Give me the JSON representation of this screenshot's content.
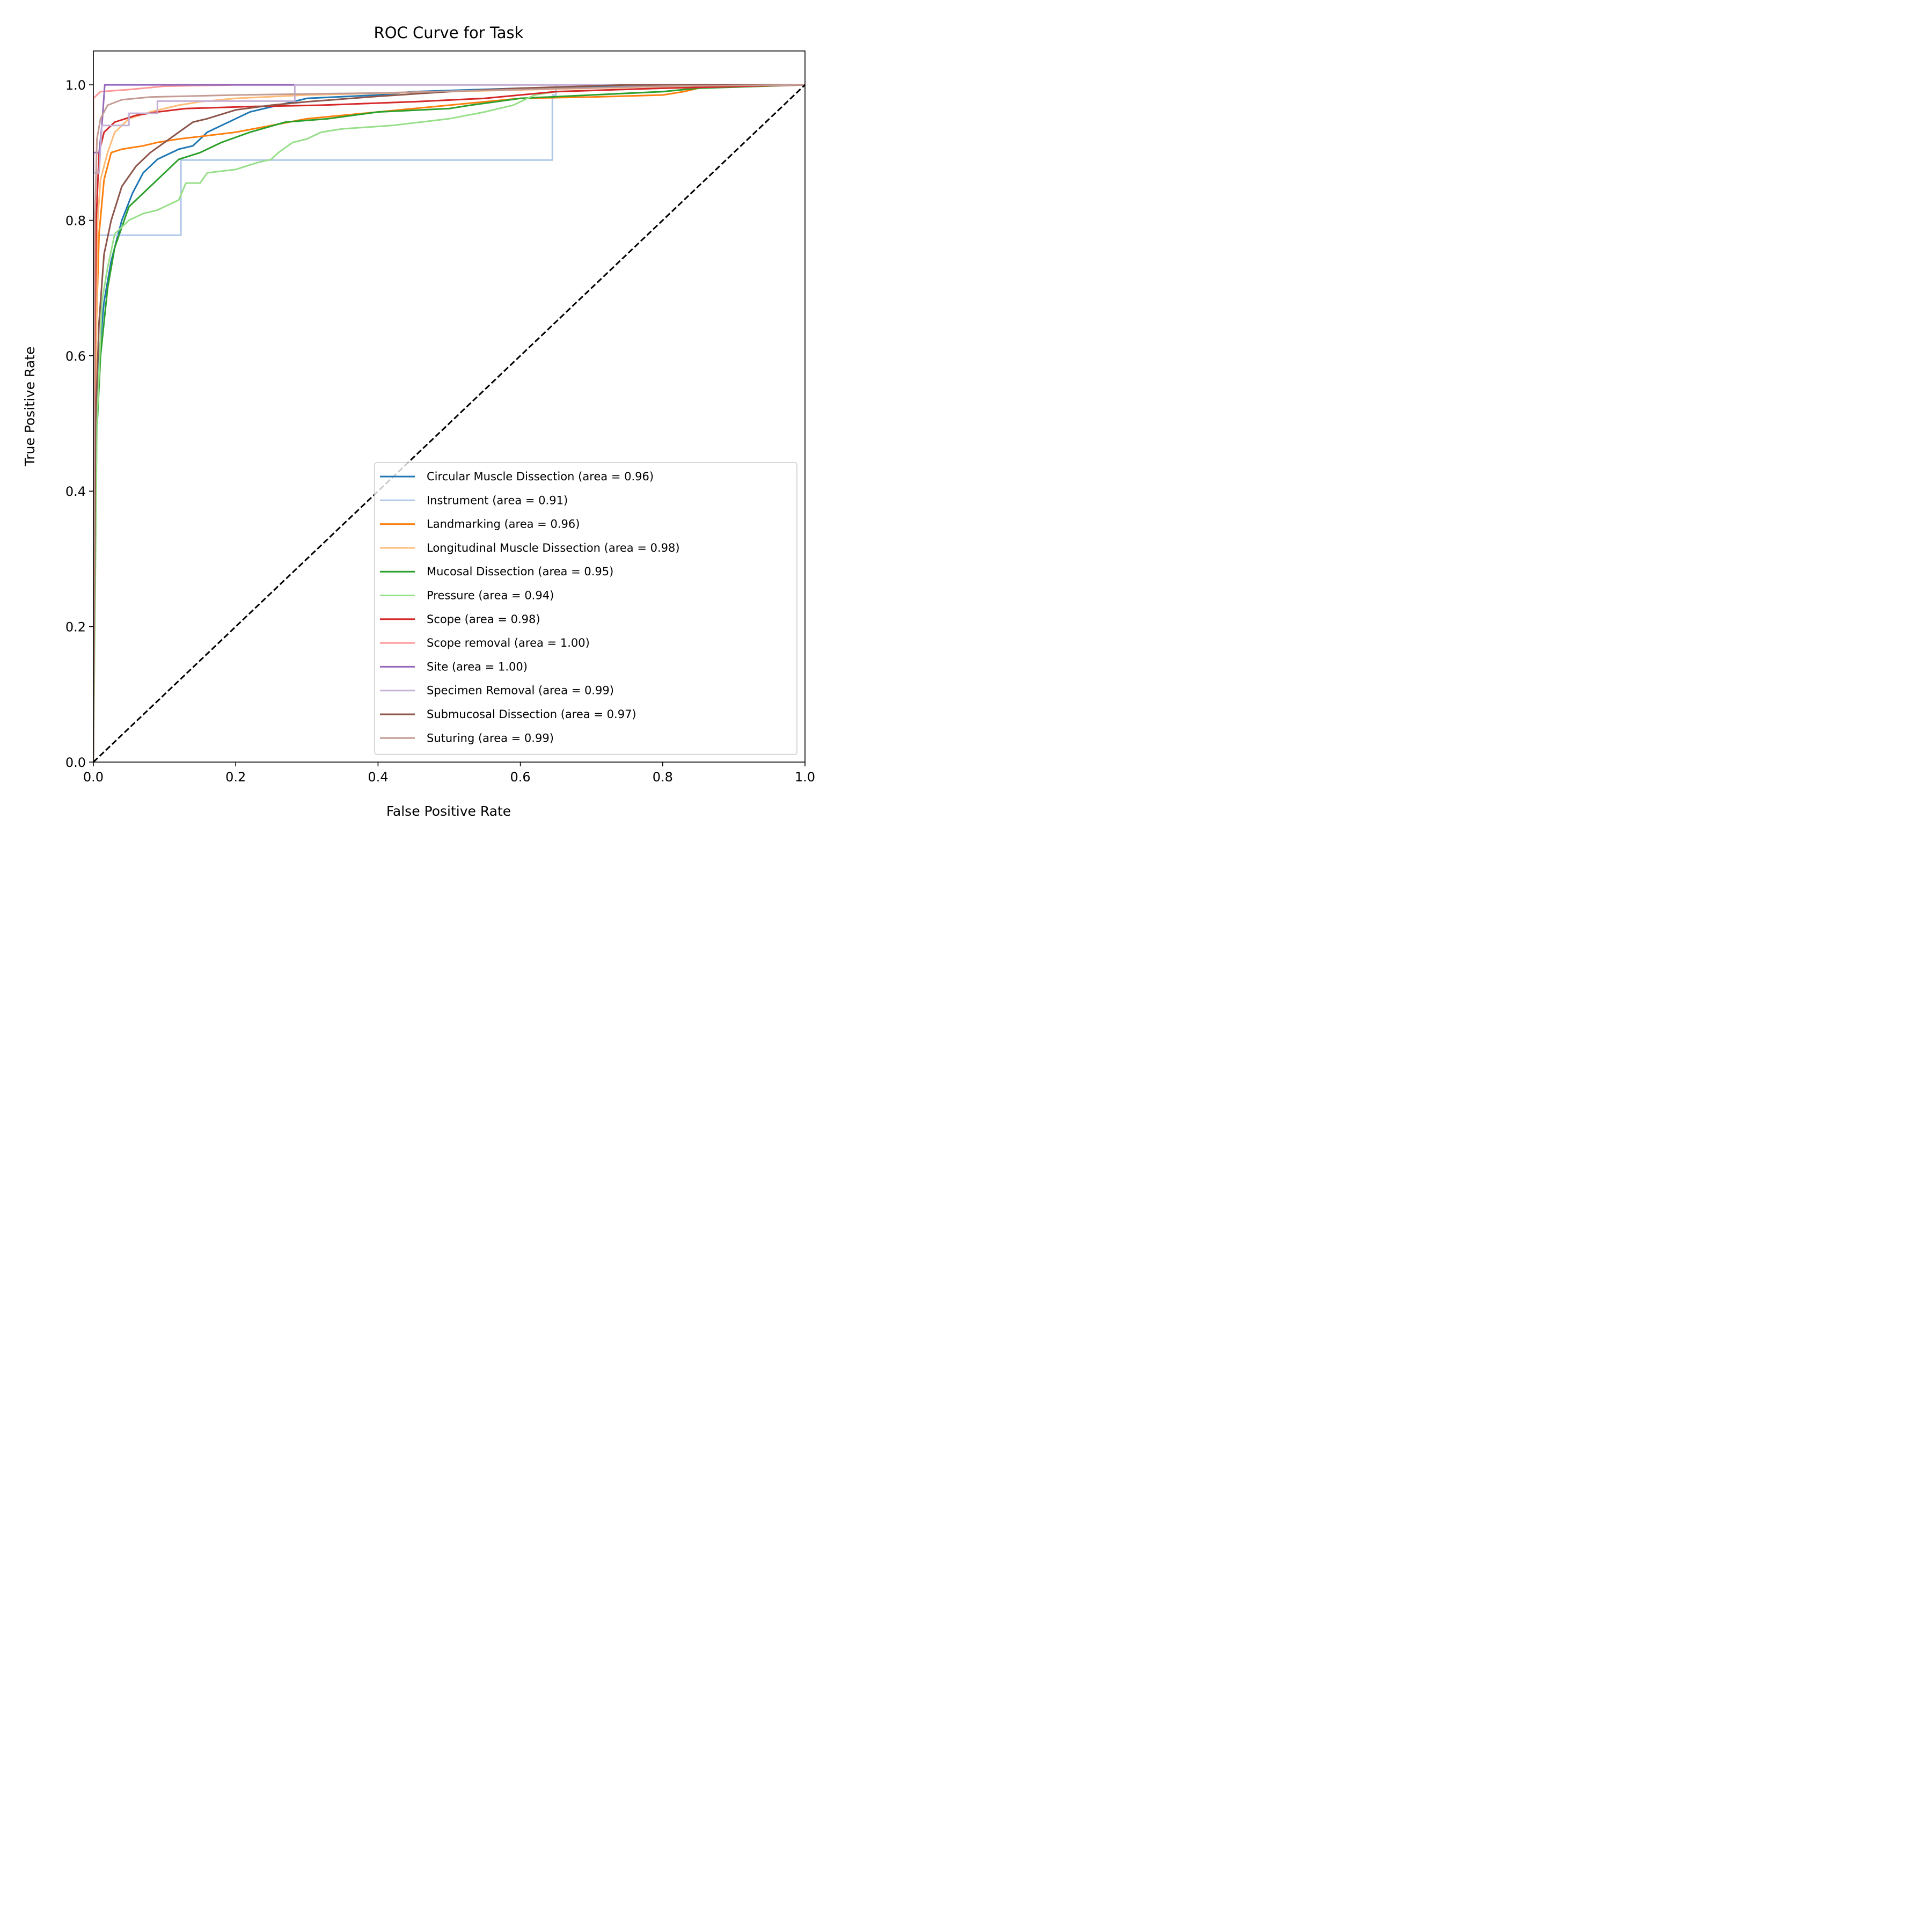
{
  "chart_data": {
    "type": "line",
    "title": "ROC Curve for Task",
    "xlabel": "False Positive Rate",
    "ylabel": "True Positive Rate",
    "xlim": [
      0.0,
      1.0
    ],
    "ylim": [
      0.0,
      1.05
    ],
    "xticks": [
      "0.0",
      "0.2",
      "0.4",
      "0.6",
      "0.8",
      "1.0"
    ],
    "yticks": [
      "0.0",
      "0.2",
      "0.4",
      "0.6",
      "0.8",
      "1.0"
    ],
    "legend_position": "lower-right",
    "diagonal": {
      "name": "chance",
      "color": "#000000",
      "style": "dashed",
      "points": [
        [
          0,
          0
        ],
        [
          1,
          1
        ]
      ]
    },
    "series": [
      {
        "name": "Circular Muscle Dissection (area = 0.96)",
        "color": "#1f77b4",
        "points": [
          [
            0,
            0
          ],
          [
            0.003,
            0.45
          ],
          [
            0.008,
            0.6
          ],
          [
            0.015,
            0.68
          ],
          [
            0.025,
            0.74
          ],
          [
            0.04,
            0.8
          ],
          [
            0.055,
            0.84
          ],
          [
            0.07,
            0.87
          ],
          [
            0.09,
            0.89
          ],
          [
            0.12,
            0.905
          ],
          [
            0.14,
            0.91
          ],
          [
            0.16,
            0.93
          ],
          [
            0.18,
            0.94
          ],
          [
            0.2,
            0.95
          ],
          [
            0.22,
            0.96
          ],
          [
            0.26,
            0.97
          ],
          [
            0.3,
            0.98
          ],
          [
            0.4,
            0.985
          ],
          [
            0.45,
            0.99
          ],
          [
            0.6,
            0.995
          ],
          [
            0.8,
            1.0
          ],
          [
            1.0,
            1.0
          ]
        ]
      },
      {
        "name": "Instrument (area = 0.91)",
        "color": "#aec7e8",
        "points": [
          [
            0,
            0
          ],
          [
            0,
            0.778
          ],
          [
            0.123,
            0.778
          ],
          [
            0.123,
            0.889
          ],
          [
            0.645,
            0.889
          ],
          [
            0.645,
            0.985
          ],
          [
            0.65,
            0.985
          ],
          [
            0.65,
            1.0
          ],
          [
            1.0,
            1.0
          ]
        ]
      },
      {
        "name": "Landmarking (area = 0.96)",
        "color": "#ff7f0e",
        "points": [
          [
            0,
            0
          ],
          [
            0.003,
            0.6
          ],
          [
            0.008,
            0.78
          ],
          [
            0.015,
            0.86
          ],
          [
            0.025,
            0.9
          ],
          [
            0.04,
            0.905
          ],
          [
            0.07,
            0.91
          ],
          [
            0.09,
            0.915
          ],
          [
            0.12,
            0.92
          ],
          [
            0.16,
            0.925
          ],
          [
            0.2,
            0.93
          ],
          [
            0.25,
            0.94
          ],
          [
            0.3,
            0.95
          ],
          [
            0.4,
            0.96
          ],
          [
            0.5,
            0.97
          ],
          [
            0.6,
            0.98
          ],
          [
            0.7,
            0.982
          ],
          [
            0.8,
            0.985
          ],
          [
            0.83,
            0.99
          ],
          [
            0.85,
            0.995
          ],
          [
            0.9,
            1.0
          ],
          [
            1.0,
            1.0
          ]
        ]
      },
      {
        "name": "Longitudinal Muscle Dissection (area = 0.98)",
        "color": "#ffbb78",
        "points": [
          [
            0,
            0
          ],
          [
            0.003,
            0.5
          ],
          [
            0.006,
            0.8
          ],
          [
            0.01,
            0.86
          ],
          [
            0.02,
            0.9
          ],
          [
            0.03,
            0.93
          ],
          [
            0.05,
            0.95
          ],
          [
            0.08,
            0.96
          ],
          [
            0.12,
            0.97
          ],
          [
            0.15,
            0.975
          ],
          [
            0.2,
            0.98
          ],
          [
            0.3,
            0.985
          ],
          [
            0.5,
            0.99
          ],
          [
            0.7,
            0.995
          ],
          [
            0.9,
            1.0
          ],
          [
            1.0,
            1.0
          ]
        ]
      },
      {
        "name": "Mucosal Dissection (area = 0.95)",
        "color": "#2ca02c",
        "points": [
          [
            0,
            0
          ],
          [
            0.003,
            0.45
          ],
          [
            0.01,
            0.6
          ],
          [
            0.02,
            0.7
          ],
          [
            0.03,
            0.76
          ],
          [
            0.05,
            0.82
          ],
          [
            0.07,
            0.84
          ],
          [
            0.09,
            0.86
          ],
          [
            0.12,
            0.89
          ],
          [
            0.15,
            0.9
          ],
          [
            0.18,
            0.915
          ],
          [
            0.22,
            0.93
          ],
          [
            0.27,
            0.945
          ],
          [
            0.33,
            0.95
          ],
          [
            0.4,
            0.96
          ],
          [
            0.5,
            0.965
          ],
          [
            0.53,
            0.97
          ],
          [
            0.6,
            0.98
          ],
          [
            0.7,
            0.985
          ],
          [
            0.8,
            0.99
          ],
          [
            0.85,
            0.995
          ],
          [
            1.0,
            1.0
          ]
        ]
      },
      {
        "name": "Pressure (area = 0.94)",
        "color": "#98df8a",
        "points": [
          [
            0,
            0
          ],
          [
            0.005,
            0.5
          ],
          [
            0.012,
            0.68
          ],
          [
            0.02,
            0.73
          ],
          [
            0.03,
            0.78
          ],
          [
            0.05,
            0.8
          ],
          [
            0.07,
            0.81
          ],
          [
            0.09,
            0.815
          ],
          [
            0.1,
            0.82
          ],
          [
            0.12,
            0.83
          ],
          [
            0.13,
            0.855
          ],
          [
            0.15,
            0.855
          ],
          [
            0.16,
            0.87
          ],
          [
            0.2,
            0.875
          ],
          [
            0.23,
            0.885
          ],
          [
            0.25,
            0.89
          ],
          [
            0.26,
            0.9
          ],
          [
            0.28,
            0.915
          ],
          [
            0.3,
            0.92
          ],
          [
            0.32,
            0.93
          ],
          [
            0.35,
            0.935
          ],
          [
            0.42,
            0.94
          ],
          [
            0.5,
            0.95
          ],
          [
            0.55,
            0.96
          ],
          [
            0.59,
            0.97
          ],
          [
            0.62,
            0.985
          ],
          [
            0.65,
            0.99
          ],
          [
            0.8,
            0.995
          ],
          [
            1.0,
            1.0
          ]
        ]
      },
      {
        "name": "Scope (area = 0.98)",
        "color": "#d62728",
        "points": [
          [
            0,
            0
          ],
          [
            0.002,
            0.6
          ],
          [
            0.004,
            0.8
          ],
          [
            0.008,
            0.9
          ],
          [
            0.015,
            0.93
          ],
          [
            0.03,
            0.945
          ],
          [
            0.06,
            0.955
          ],
          [
            0.09,
            0.96
          ],
          [
            0.13,
            0.965
          ],
          [
            0.22,
            0.968
          ],
          [
            0.32,
            0.97
          ],
          [
            0.45,
            0.975
          ],
          [
            0.55,
            0.98
          ],
          [
            0.65,
            0.99
          ],
          [
            0.8,
            0.995
          ],
          [
            1.0,
            1.0
          ]
        ]
      },
      {
        "name": "Scope removal (area = 1.00)",
        "color": "#ff9896",
        "points": [
          [
            0,
            0
          ],
          [
            0,
            0.98
          ],
          [
            0.005,
            0.985
          ],
          [
            0.01,
            0.99
          ],
          [
            0.05,
            0.993
          ],
          [
            0.1,
            0.998
          ],
          [
            0.2,
            1.0
          ],
          [
            1.0,
            1.0
          ]
        ]
      },
      {
        "name": "Site (area = 1.00)",
        "color": "#9467bd",
        "points": [
          [
            0,
            0
          ],
          [
            0,
            0.9
          ],
          [
            0.008,
            0.9
          ],
          [
            0.012,
            0.94
          ],
          [
            0.016,
            1.0
          ],
          [
            1.0,
            1.0
          ]
        ]
      },
      {
        "name": "Specimen Removal (area = 0.99)",
        "color": "#c5b0d5",
        "points": [
          [
            0,
            0
          ],
          [
            0,
            0.87
          ],
          [
            0.008,
            0.87
          ],
          [
            0.012,
            0.94
          ],
          [
            0.05,
            0.94
          ],
          [
            0.05,
            0.958
          ],
          [
            0.09,
            0.958
          ],
          [
            0.09,
            0.976
          ],
          [
            0.283,
            0.976
          ],
          [
            0.283,
            1.0
          ],
          [
            1.0,
            1.0
          ]
        ]
      },
      {
        "name": "Submucosal Dissection (area = 0.97)",
        "color": "#8c564b",
        "points": [
          [
            0,
            0
          ],
          [
            0.003,
            0.5
          ],
          [
            0.008,
            0.65
          ],
          [
            0.015,
            0.75
          ],
          [
            0.025,
            0.8
          ],
          [
            0.04,
            0.85
          ],
          [
            0.06,
            0.88
          ],
          [
            0.08,
            0.9
          ],
          [
            0.1,
            0.915
          ],
          [
            0.12,
            0.93
          ],
          [
            0.14,
            0.945
          ],
          [
            0.16,
            0.95
          ],
          [
            0.2,
            0.963
          ],
          [
            0.25,
            0.97
          ],
          [
            0.3,
            0.975
          ],
          [
            0.4,
            0.983
          ],
          [
            0.5,
            0.99
          ],
          [
            0.6,
            0.995
          ],
          [
            0.75,
            1.0
          ],
          [
            1.0,
            1.0
          ]
        ]
      },
      {
        "name": "Suturing (area = 0.99)",
        "color": "#c49c94",
        "points": [
          [
            0,
            0
          ],
          [
            0.002,
            0.8
          ],
          [
            0.005,
            0.92
          ],
          [
            0.01,
            0.95
          ],
          [
            0.02,
            0.97
          ],
          [
            0.04,
            0.978
          ],
          [
            0.08,
            0.982
          ],
          [
            0.2,
            0.985
          ],
          [
            0.4,
            0.988
          ],
          [
            0.6,
            0.993
          ],
          [
            0.8,
            0.998
          ],
          [
            1.0,
            1.0
          ]
        ]
      }
    ]
  }
}
